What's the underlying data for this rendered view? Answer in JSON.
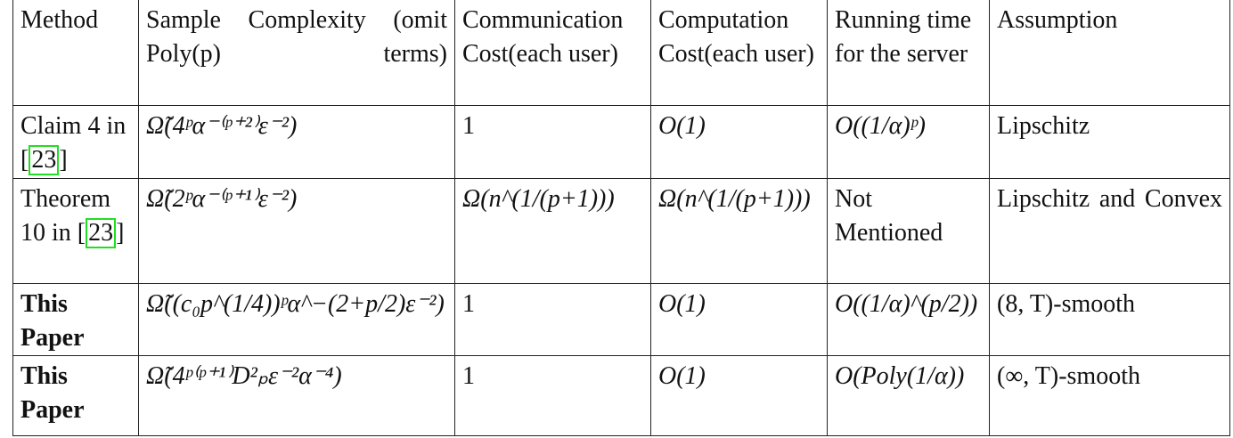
{
  "headers": [
    "Method",
    "Sample Complexity (omit Poly(p) terms)",
    "Communication Cost(each user)",
    "Computation Cost(each user)",
    "Running time for the server",
    "Assumption"
  ],
  "rows": [
    {
      "method_pre": "Claim 4 in [",
      "cite": "23",
      "method_post": "]",
      "bold": false,
      "sample": "Ω̃(4ᵖα⁻⁽ᵖ⁺²⁾ε⁻²)",
      "comm": "1",
      "comp": "O(1)",
      "server": "O((1/α)ᵖ)",
      "assumption": "Lipschitz"
    },
    {
      "method_pre": "Theorem 10 in [",
      "cite": "23",
      "method_post": "]",
      "bold": false,
      "sample": "Ω̃(2ᵖα⁻⁽ᵖ⁺¹⁾ε⁻²)",
      "comm": "Ω(n^(1/(p+1)))",
      "comp": "Ω(n^(1/(p+1)))",
      "server": "Not Mentioned",
      "assumption": "Lipschitz and Convex"
    },
    {
      "method_pre": "This Paper",
      "cite": "",
      "method_post": "",
      "bold": true,
      "sample": "Ω̃((c₀p^(1/4))ᵖα^−(2+p/2)ε⁻²)",
      "comm": "1",
      "comp": "O(1)",
      "server": "O((1/α)^(p/2))",
      "assumption": "(8, T)-smooth"
    },
    {
      "method_pre": "This Paper",
      "cite": "",
      "method_post": "",
      "bold": true,
      "sample": "Ω̃(4ᵖ⁽ᵖ⁺¹⁾D²ₚε⁻²α⁻⁴)",
      "comm": "1",
      "comp": "O(1)",
      "server": "O(Poly(1/α))",
      "assumption": "(∞, T)-smooth"
    }
  ],
  "colors": {
    "citation_box": "#22dd22"
  }
}
